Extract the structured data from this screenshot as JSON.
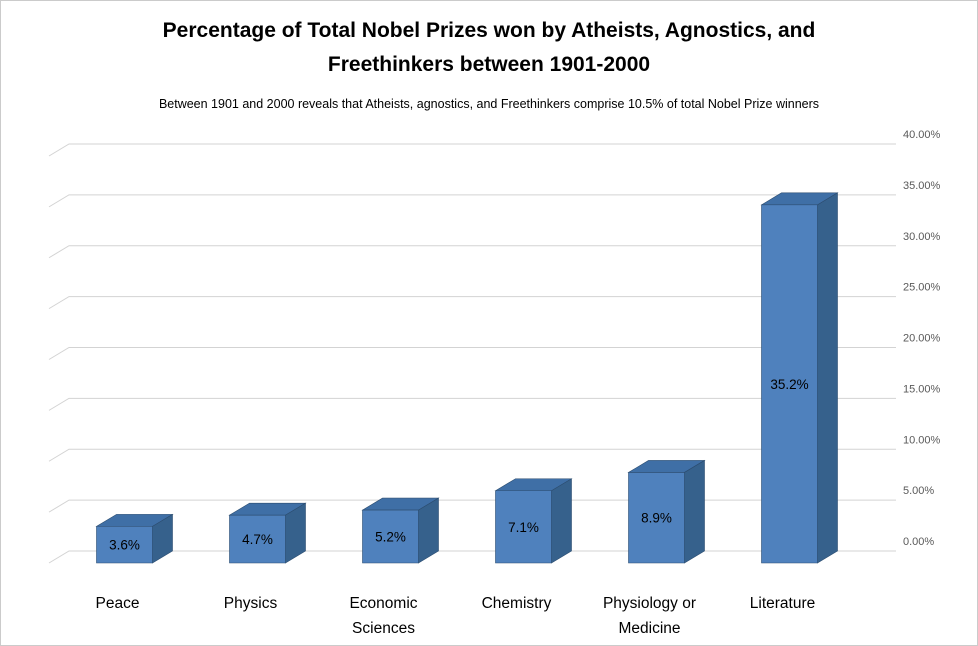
{
  "chart_data": {
    "type": "bar",
    "chart_style": "3d-column",
    "title": "Percentage of Total Nobel Prizes won by Atheists, Agnostics, and Freethinkers  between 1901-2000",
    "title_lines": [
      "Percentage of Total Nobel Prizes won by Atheists, Agnostics, and",
      "Freethinkers  between 1901-2000"
    ],
    "subtitle": "Between 1901 and 2000 reveals that Atheists, agnostics, and Freethinkers comprise 10.5% of total Nobel Prize winners",
    "categories": [
      "Peace",
      "Physics",
      "Economic Sciences",
      "Chemistry",
      "Physiology or Medicine",
      "Literature"
    ],
    "values": [
      3.6,
      4.7,
      5.2,
      7.1,
      8.9,
      35.2
    ],
    "data_labels": [
      "3.6%",
      "4.7%",
      "5.2%",
      "7.1%",
      "8.9%",
      "35.2%"
    ],
    "xlabel": "",
    "ylabel": "",
    "y_axis": {
      "min": 0,
      "max": 40,
      "step": 5,
      "position": "right",
      "tick_labels": [
        "0.00%",
        "5.00%",
        "10.00%",
        "15.00%",
        "20.00%",
        "25.00%",
        "30.00%",
        "35.00%",
        "40.00%"
      ]
    },
    "legend": "none",
    "grid": "horizontal",
    "colors": {
      "bar_front": "#4f81bd",
      "bar_side": "#36618c",
      "bar_top": "#3f6fa6",
      "bar_edge": "#2c4d70",
      "gridline": "#d3d3d3",
      "axis_text": "#595959",
      "label_text": "#000000",
      "background": "#ffffff",
      "page_border": "#cbcbcb"
    }
  }
}
